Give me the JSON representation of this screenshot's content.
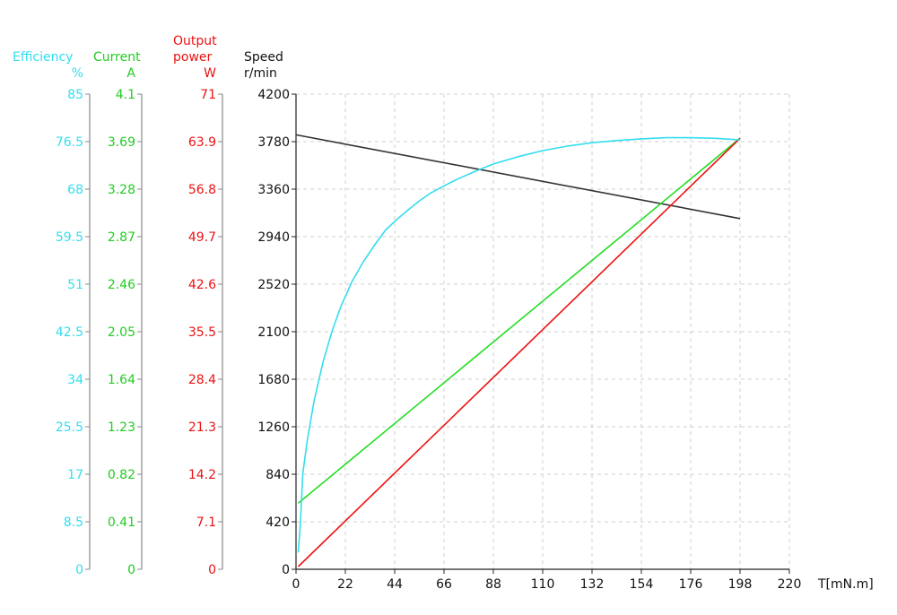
{
  "chart_data": {
    "type": "line",
    "xlabel": "T[mN.m]",
    "xlim": [
      0,
      220
    ],
    "x_ticks": [
      "0",
      "22",
      "44",
      "66",
      "88",
      "110",
      "132",
      "154",
      "176",
      "198",
      "220"
    ],
    "grid": true,
    "axes": [
      {
        "key": "efficiency",
        "title": [
          "Efficiency",
          "%"
        ],
        "color": "#33ddee",
        "lim": [
          0,
          85
        ],
        "ticks": [
          "0",
          "8.5",
          "17",
          "25.5",
          "34",
          "42.5",
          "51",
          "59.5",
          "68",
          "76.5",
          "85"
        ]
      },
      {
        "key": "current",
        "title": [
          "Current",
          "A"
        ],
        "color": "#22cc22",
        "lim": [
          0,
          4.1
        ],
        "ticks": [
          "0",
          "0.41",
          "0.82",
          "1.23",
          "1.64",
          "2.05",
          "2.46",
          "2.87",
          "3.28",
          "3.69",
          "4.1"
        ]
      },
      {
        "key": "power",
        "title": [
          "Output",
          "power",
          "W"
        ],
        "color": "#ee1111",
        "lim": [
          0,
          71
        ],
        "ticks": [
          "0",
          "7.1",
          "14.2",
          "21.3",
          "28.4",
          "35.5",
          "42.6",
          "49.7",
          "56.8",
          "63.9",
          "71"
        ]
      },
      {
        "key": "speed",
        "title": [
          "Speed",
          "r/min"
        ],
        "color": "#111111",
        "lim": [
          0,
          4200
        ],
        "ticks": [
          "0",
          "420",
          "840",
          "1260",
          "1680",
          "2100",
          "2520",
          "2940",
          "3360",
          "3780",
          "4200"
        ]
      }
    ],
    "series": [
      {
        "axis": "speed",
        "color": "#333333",
        "x": [
          0,
          198
        ],
        "y": [
          3840,
          3100
        ]
      },
      {
        "axis": "current",
        "color": "#22dd22",
        "x": [
          1,
          198
        ],
        "y": [
          0.57,
          3.72
        ]
      },
      {
        "axis": "power",
        "color": "#ee1111",
        "x": [
          1,
          198
        ],
        "y": [
          0.4,
          64.4
        ]
      },
      {
        "axis": "efficiency",
        "color": "#33ddee",
        "x": [
          1,
          2,
          3,
          5,
          8,
          12,
          16,
          20,
          25,
          30,
          35,
          40,
          45,
          50,
          55,
          60,
          66,
          72,
          80,
          88,
          100,
          110,
          121,
          132,
          143,
          154,
          165,
          176,
          187,
          198
        ],
        "y": [
          3,
          8.5,
          17,
          23,
          30,
          37,
          42.5,
          47,
          51.5,
          55,
          58,
          60.7,
          62.6,
          64.3,
          65.9,
          67.3,
          68.6,
          69.8,
          71.2,
          72.5,
          73.9,
          74.9,
          75.7,
          76.3,
          76.7,
          77.0,
          77.2,
          77.2,
          77.1,
          76.8
        ]
      }
    ]
  }
}
